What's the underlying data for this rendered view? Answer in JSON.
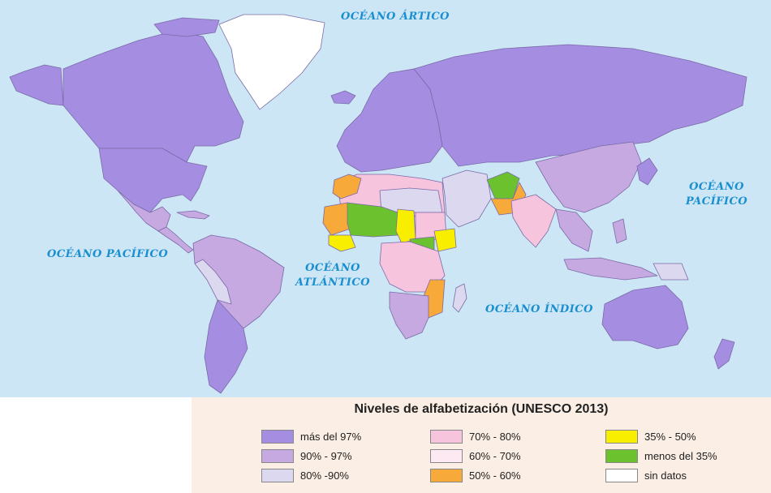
{
  "oceans": {
    "artico": "OCÉANO ÁRTICO",
    "pacifico_oeste": "OCÉANO PACÍFICO",
    "atlantico_1": "OCÉANO",
    "atlantico_2": "ATLÁNTICO",
    "indico": "OCÉANO ÍNDICO",
    "pacifico_este_1": "OCÉANO",
    "pacifico_este_2": "PACÍFICO"
  },
  "legend": {
    "title": "Niveles de alfabetización (UNESCO 2013)",
    "items": [
      {
        "label": "más del 97%",
        "color": "#a58ee2"
      },
      {
        "label": "90% - 97%",
        "color": "#c5a9e0"
      },
      {
        "label": "80% -90%",
        "color": "#dcd8ef"
      },
      {
        "label": "70% - 80%",
        "color": "#f6c4dd"
      },
      {
        "label": "60% - 70%",
        "color": "#fce9f2"
      },
      {
        "label": "50% - 60%",
        "color": "#f7a93a"
      },
      {
        "label": "35% - 50%",
        "color": "#f8ef00"
      },
      {
        "label": "menos del 35%",
        "color": "#6cc22e"
      },
      {
        "label": "sin datos",
        "color": "#ffffff"
      }
    ]
  },
  "colors": {
    "ocean": "#cde6f5",
    "legend_bg": "#fbeee4",
    "ocean_label": "#1a8fd0"
  }
}
